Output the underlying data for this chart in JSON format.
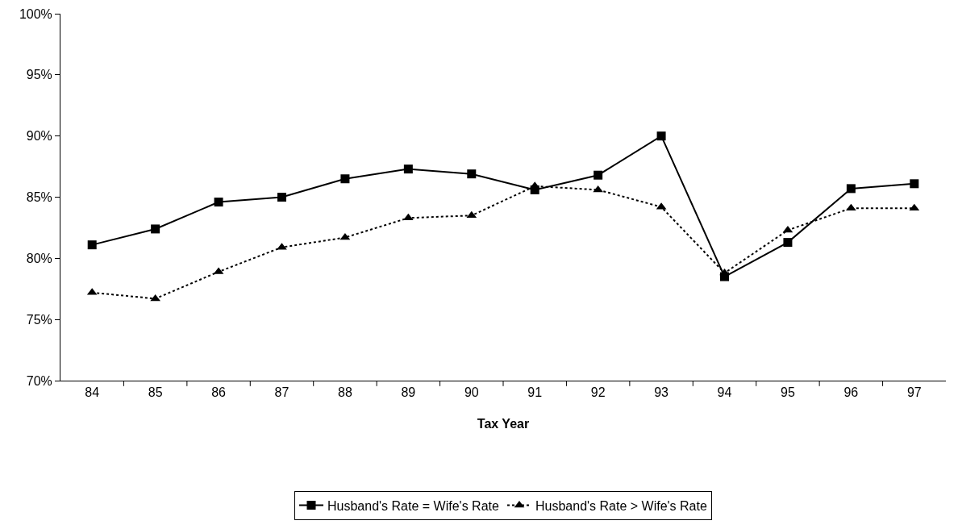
{
  "chart_data": {
    "type": "line",
    "xlabel": "Tax Year",
    "categories": [
      "84",
      "85",
      "86",
      "87",
      "88",
      "89",
      "90",
      "91",
      "92",
      "93",
      "94",
      "95",
      "96",
      "97"
    ],
    "series": [
      {
        "name": "Husband's Rate = Wife's Rate",
        "color": "#000000",
        "marker": "square",
        "line_style": "solid",
        "values": [
          81.1,
          82.4,
          84.6,
          85.0,
          86.5,
          87.3,
          86.9,
          85.6,
          86.8,
          90.0,
          78.5,
          81.3,
          85.7,
          86.1
        ]
      },
      {
        "name": "Husband's Rate > Wife's Rate",
        "color": "#000000",
        "marker": "triangle",
        "line_style": "dotted",
        "values": [
          77.2,
          76.7,
          78.9,
          80.9,
          81.7,
          83.3,
          83.5,
          85.9,
          85.6,
          84.2,
          78.8,
          82.3,
          84.1,
          84.1
        ]
      }
    ],
    "ylim": [
      70,
      100
    ],
    "yticks": [
      {
        "value": 70,
        "label": "70%"
      },
      {
        "value": 75,
        "label": "75%"
      },
      {
        "value": 80,
        "label": "80%"
      },
      {
        "value": 85,
        "label": "85%"
      },
      {
        "value": 90,
        "label": "90%"
      },
      {
        "value": 95,
        "label": "95%"
      },
      {
        "value": 100,
        "label": "100%"
      }
    ],
    "grid": false,
    "legend": "bottom"
  }
}
